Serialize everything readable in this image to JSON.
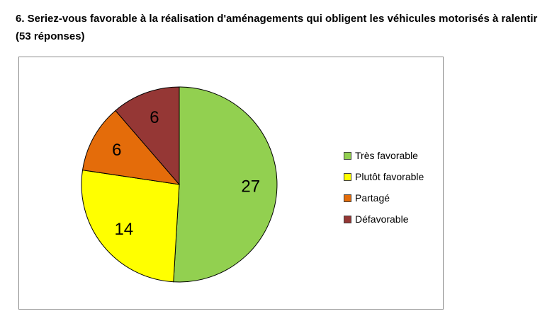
{
  "question": {
    "title": "6. Seriez-vous favorable à la réalisation d'aménagements qui obligent les véhicules motorisés à ralentir (53 réponses)"
  },
  "chart_data": {
    "type": "pie",
    "title": "",
    "categories": [
      "Très favorable",
      "Plutôt favorable",
      "Partagé",
      "Défavorable"
    ],
    "values": [
      27,
      14,
      6,
      6
    ],
    "colors": [
      "#92d050",
      "#ffff00",
      "#e46c0a",
      "#953735"
    ],
    "data_labels": [
      "27",
      "14",
      "6",
      "6"
    ],
    "legend_placement": "right",
    "start_angle": "top",
    "direction": "clockwise"
  }
}
